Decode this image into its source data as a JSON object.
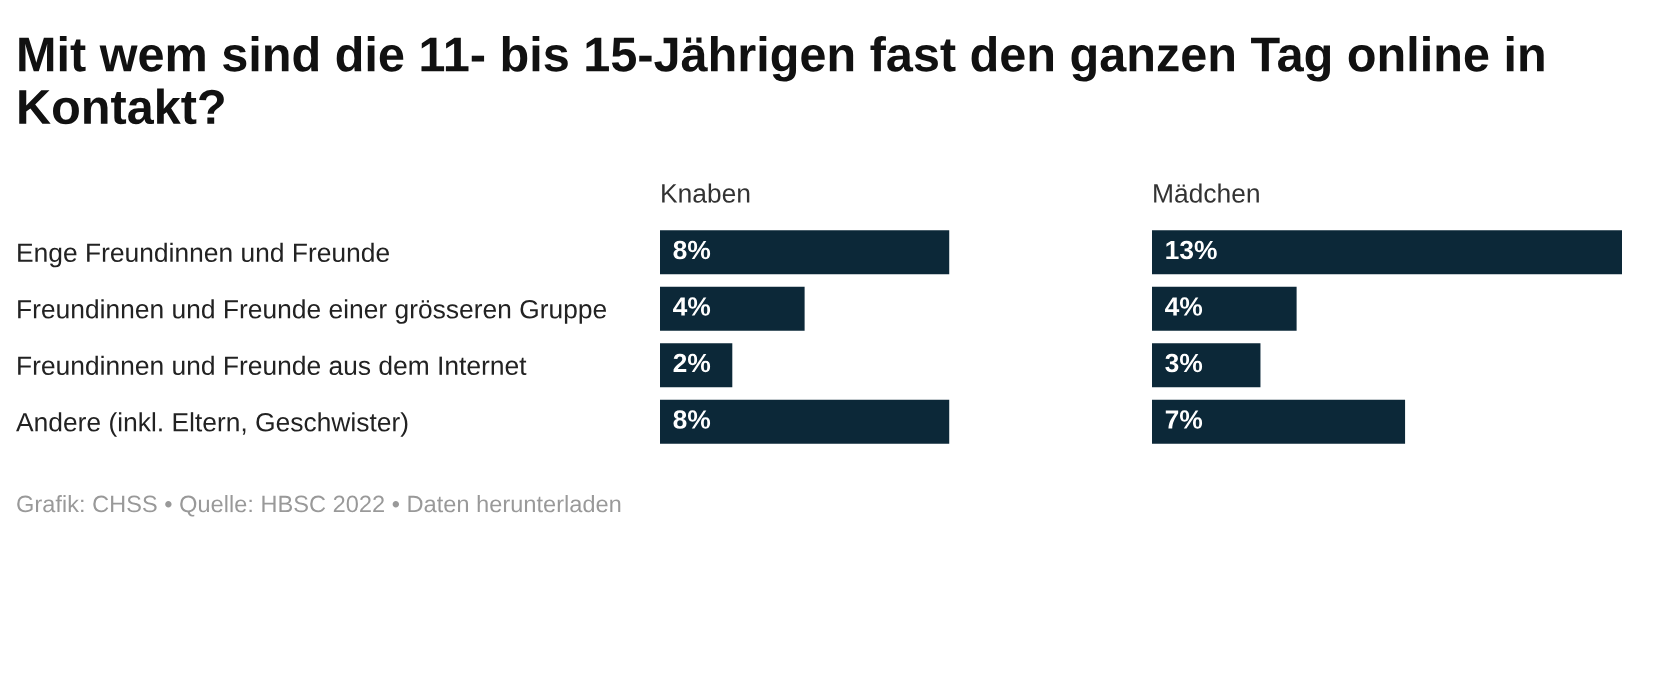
{
  "chart_data": [
    {
      "type": "bar",
      "orientation": "horizontal",
      "title": "Mit wem sind die 11- bis 15-Jährigen fast den ganzen Tag online in Kontakt?",
      "subtitle": "Knaben",
      "categories": [
        "Enge Freundinnen und Freunde",
        "Freundinnen und Freunde einer grösseren Gruppe",
        "Freundinnen und Freunde aus dem Internet",
        "Andere (inkl. Eltern, Geschwister)"
      ],
      "values": [
        8,
        4,
        2,
        8
      ],
      "value_labels": [
        "8%",
        "4%",
        "2%",
        "8%"
      ],
      "color": "#0c2838",
      "grid": false,
      "legend": false,
      "annotations": [
        "Grafik: CHSS • Quelle: HBSC 2022 • Daten herunterladen"
      ]
    },
    {
      "type": "bar",
      "orientation": "horizontal",
      "subtitle": "Mädchen",
      "categories": [
        null,
        null,
        null,
        null
      ],
      "values": [
        13,
        4,
        3,
        7
      ],
      "value_labels": [
        "13%",
        "4%",
        "3%",
        "7%"
      ],
      "color": "#0c2838",
      "grid": false,
      "legend": false
    }
  ]
}
